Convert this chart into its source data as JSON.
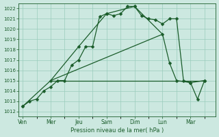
{
  "background_color": "#cce8e0",
  "grid_color": "#99ccbb",
  "line_color": "#1a5c2a",
  "xlabel": "Pression niveau de la mer( hPa )",
  "ylim": [
    1011.5,
    1022.5
  ],
  "yticks": [
    1012,
    1013,
    1014,
    1015,
    1016,
    1017,
    1018,
    1019,
    1020,
    1021,
    1022
  ],
  "x_labels": [
    "Ven",
    "Mer",
    "Jeu",
    "Sam",
    "Dim",
    "Lun",
    "Mar"
  ],
  "x_positions": [
    0,
    2,
    4,
    6,
    8,
    10,
    12
  ],
  "xlim": [
    -0.3,
    13.8
  ],
  "series": [
    {
      "x": [
        0,
        0.5,
        1,
        1.5,
        2,
        2.5,
        3,
        3.5,
        4,
        4.5,
        5,
        5.5,
        6,
        6.5,
        7,
        7.5,
        8,
        8.5,
        9,
        9.5,
        10,
        10.5,
        11,
        11.5,
        12,
        12.5,
        13
      ],
      "y": [
        1012.5,
        1013.0,
        1013.2,
        1014.0,
        1014.4,
        1015.0,
        1015.0,
        1016.5,
        1017.0,
        1018.3,
        1018.3,
        1021.2,
        1021.5,
        1021.3,
        1021.5,
        1022.2,
        1022.2,
        1021.3,
        1021.0,
        1020.9,
        1020.5,
        1021.0,
        1021.0,
        1015.0,
        1014.8,
        1013.2,
        1015.0
      ],
      "marker": "D",
      "markersize": 2.5,
      "linewidth": 0.9
    },
    {
      "x": [
        0,
        2,
        4,
        6,
        8,
        10,
        10.5,
        11,
        12,
        13
      ],
      "y": [
        1012.5,
        1015.0,
        1018.3,
        1021.5,
        1022.2,
        1019.5,
        1016.7,
        1015.0,
        1014.8,
        1015.0
      ],
      "marker": "D",
      "markersize": 2.5,
      "linewidth": 0.9
    },
    {
      "x": [
        2,
        13
      ],
      "y": [
        1015.0,
        1015.0
      ],
      "marker": null,
      "markersize": 0,
      "linewidth": 0.9
    },
    {
      "x": [
        2,
        10
      ],
      "y": [
        1015.0,
        1019.5
      ],
      "marker": null,
      "markersize": 0,
      "linewidth": 0.9
    }
  ]
}
